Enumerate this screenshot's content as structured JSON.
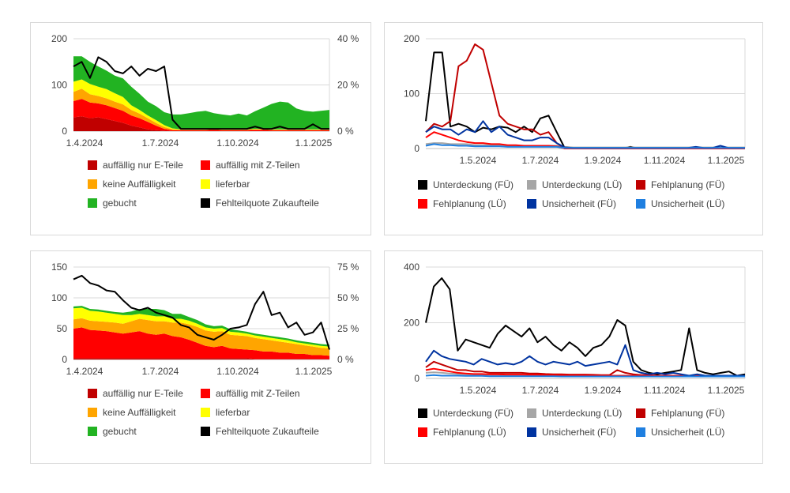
{
  "chart_data": [
    {
      "type": "area",
      "stacked": true,
      "x_ticks": [
        "1.4.2024",
        "1.7.2024",
        "1.10.2024",
        "1.1.2025"
      ],
      "y_ticks": [
        "200",
        "100",
        "0"
      ],
      "y2_ticks": [
        "40 %",
        "20 %",
        "0 %"
      ],
      "ylim": [
        0,
        200
      ],
      "y2lim": [
        0,
        40
      ],
      "grid": true,
      "legend_position": "bottom",
      "series": [
        {
          "name": "auffällig nur E-Teile",
          "color": "#c00000",
          "values": [
            30,
            32,
            28,
            30,
            26,
            22,
            18,
            12,
            8,
            4,
            2,
            1,
            0,
            0,
            0,
            0,
            0,
            0,
            0,
            0,
            0,
            0,
            0,
            0,
            0,
            0,
            0,
            0,
            0,
            0,
            0,
            0
          ]
        },
        {
          "name": "auffällig mit Z-Teilen",
          "color": "#ff0000",
          "values": [
            35,
            38,
            34,
            30,
            30,
            28,
            26,
            22,
            20,
            16,
            10,
            4,
            2,
            2,
            2,
            2,
            2,
            3,
            2,
            2,
            2,
            2,
            3,
            3,
            2,
            2,
            2,
            2,
            2,
            2,
            2,
            2
          ]
        },
        {
          "name": "keine Auffälligkeit",
          "color": "#ffa500",
          "values": [
            20,
            22,
            18,
            16,
            15,
            14,
            14,
            12,
            10,
            8,
            6,
            4,
            2,
            1,
            1,
            1,
            1,
            1,
            1,
            1,
            1,
            1,
            1,
            1,
            1,
            1,
            1,
            1,
            1,
            1,
            1,
            1
          ]
        },
        {
          "name": "lieferbar",
          "color": "#ffff00",
          "values": [
            22,
            20,
            22,
            20,
            20,
            18,
            16,
            10,
            8,
            6,
            6,
            4,
            2,
            1,
            1,
            1,
            1,
            1,
            1,
            1,
            1,
            1,
            1,
            1,
            1,
            1,
            1,
            1,
            1,
            1,
            1,
            1
          ]
        },
        {
          "name": "gebucht",
          "color": "#22b322",
          "values": [
            55,
            50,
            48,
            44,
            40,
            38,
            40,
            40,
            35,
            30,
            30,
            28,
            30,
            32,
            35,
            38,
            40,
            34,
            32,
            30,
            34,
            30,
            38,
            46,
            55,
            60,
            58,
            45,
            40,
            38,
            40,
            42
          ]
        }
      ],
      "line_series": [
        {
          "name": "Fehlteilquote Zukaufteile",
          "color": "#000000",
          "axis": "right",
          "values": [
            28,
            30,
            23,
            32,
            30,
            26,
            25,
            28,
            24,
            27,
            26,
            28,
            5,
            1,
            1,
            1,
            1,
            1,
            1,
            1,
            1,
            1,
            2,
            1,
            1,
            2,
            1,
            1,
            1,
            3,
            1,
            1
          ]
        }
      ]
    },
    {
      "type": "line",
      "x_ticks": [
        "1.5.2024",
        "1.7.2024",
        "1.9.2024",
        "1.11.2024",
        "1.1.2025"
      ],
      "y_ticks": [
        "200",
        "100",
        "0"
      ],
      "ylim": [
        0,
        200
      ],
      "grid": true,
      "legend_position": "bottom",
      "series": [
        {
          "name": "Unterdeckung (FÜ)",
          "color": "#000000",
          "values": [
            50,
            175,
            175,
            40,
            45,
            40,
            30,
            38,
            35,
            40,
            38,
            30,
            40,
            30,
            55,
            60,
            30,
            0,
            0,
            0,
            0,
            0,
            0,
            0,
            0,
            3,
            0,
            0,
            0,
            0,
            0,
            0,
            0,
            0,
            0,
            0,
            0,
            0,
            0,
            0
          ]
        },
        {
          "name": "Unterdeckung (LÜ)",
          "color": "#a6a6a6",
          "values": [
            8,
            10,
            10,
            8,
            8,
            8,
            6,
            6,
            6,
            6,
            5,
            5,
            5,
            5,
            5,
            5,
            5,
            3,
            2,
            2,
            2,
            2,
            2,
            2,
            2,
            2,
            2,
            2,
            2,
            2,
            2,
            2,
            2,
            2,
            2,
            2,
            2,
            2,
            2,
            2
          ]
        },
        {
          "name": "Fehlplanung (FÜ)",
          "color": "#c00000",
          "values": [
            30,
            45,
            40,
            50,
            150,
            160,
            190,
            180,
            120,
            60,
            45,
            40,
            35,
            35,
            25,
            30,
            10,
            0,
            0,
            0,
            0,
            0,
            0,
            0,
            0,
            0,
            0,
            0,
            0,
            0,
            0,
            0,
            0,
            0,
            0,
            0,
            0,
            0,
            0,
            0
          ]
        },
        {
          "name": "Fehlplanung (LÜ)",
          "color": "#ff0000",
          "values": [
            20,
            30,
            25,
            20,
            15,
            12,
            10,
            10,
            8,
            8,
            6,
            6,
            5,
            5,
            5,
            5,
            4,
            0,
            0,
            0,
            0,
            0,
            0,
            0,
            0,
            0,
            0,
            0,
            0,
            0,
            0,
            0,
            0,
            0,
            0,
            0,
            0,
            0,
            0,
            0
          ]
        },
        {
          "name": "Unsicherheit (FÜ)",
          "color": "#0033a0",
          "values": [
            30,
            40,
            35,
            35,
            25,
            35,
            30,
            50,
            30,
            40,
            25,
            20,
            15,
            15,
            20,
            20,
            10,
            2,
            1,
            1,
            1,
            1,
            1,
            1,
            1,
            1,
            1,
            1,
            1,
            1,
            1,
            1,
            1,
            3,
            1,
            1,
            5,
            1,
            1,
            1
          ]
        },
        {
          "name": "Unsicherheit (LÜ)",
          "color": "#1f7fe0",
          "values": [
            5,
            8,
            6,
            6,
            5,
            5,
            4,
            4,
            4,
            4,
            3,
            3,
            3,
            3,
            3,
            3,
            3,
            1,
            1,
            1,
            1,
            1,
            1,
            1,
            1,
            1,
            1,
            1,
            1,
            1,
            1,
            1,
            1,
            1,
            1,
            1,
            1,
            1,
            1,
            1
          ]
        }
      ]
    },
    {
      "type": "area",
      "stacked": true,
      "x_ticks": [
        "1.4.2024",
        "1.7.2024",
        "1.10.2024",
        "1.1.2025"
      ],
      "y_ticks": [
        "150",
        "100",
        "50",
        "0"
      ],
      "y2_ticks": [
        "75 %",
        "50 %",
        "25 %",
        "0 %"
      ],
      "ylim": [
        0,
        150
      ],
      "y2lim": [
        0,
        75
      ],
      "grid": true,
      "legend_position": "bottom",
      "series": [
        {
          "name": "auffällig nur E-Teile",
          "color": "#c00000",
          "values": [
            2,
            2,
            2,
            2,
            2,
            2,
            2,
            2,
            2,
            2,
            2,
            2,
            2,
            2,
            2,
            2,
            2,
            2,
            2,
            2,
            2,
            2,
            1,
            1,
            1,
            1,
            1,
            1,
            1,
            1,
            1,
            1
          ]
        },
        {
          "name": "auffällig mit Z-Teilen",
          "color": "#ff0000",
          "values": [
            48,
            50,
            46,
            45,
            44,
            42,
            40,
            42,
            44,
            40,
            38,
            40,
            36,
            34,
            30,
            25,
            20,
            18,
            20,
            16,
            15,
            14,
            14,
            12,
            12,
            10,
            10,
            8,
            8,
            6,
            6,
            5
          ]
        },
        {
          "name": "keine Auffälligkeit",
          "color": "#ffa500",
          "values": [
            15,
            15,
            15,
            15,
            15,
            16,
            16,
            18,
            20,
            22,
            22,
            20,
            22,
            24,
            25,
            26,
            25,
            25,
            24,
            22,
            22,
            22,
            20,
            20,
            18,
            18,
            16,
            16,
            14,
            14,
            12,
            12
          ]
        },
        {
          "name": "lieferbar",
          "color": "#ffff00",
          "values": [
            18,
            17,
            16,
            16,
            15,
            14,
            14,
            10,
            8,
            8,
            8,
            8,
            6,
            6,
            6,
            5,
            5,
            5,
            5,
            5,
            5,
            4,
            4,
            4,
            4,
            4,
            4,
            3,
            3,
            3,
            3,
            3
          ]
        },
        {
          "name": "gebucht",
          "color": "#22b322",
          "values": [
            3,
            3,
            3,
            3,
            3,
            3,
            4,
            6,
            8,
            10,
            12,
            10,
            8,
            8,
            6,
            6,
            5,
            4,
            4,
            4,
            3,
            3,
            3,
            3,
            3,
            3,
            3,
            3,
            3,
            3,
            3,
            3
          ]
        }
      ],
      "line_series": [
        {
          "name": "Fehlteilquote Zukaufteile",
          "color": "#000000",
          "axis": "right",
          "values": [
            65,
            68,
            62,
            60,
            56,
            55,
            48,
            42,
            40,
            42,
            38,
            36,
            34,
            28,
            26,
            20,
            18,
            16,
            20,
            25,
            26,
            28,
            45,
            55,
            36,
            38,
            26,
            30,
            20,
            22,
            30,
            8
          ]
        }
      ]
    },
    {
      "type": "line",
      "x_ticks": [
        "1.5.2024",
        "1.7.2024",
        "1.9.2024",
        "1.11.2024",
        "1.1.2025"
      ],
      "y_ticks": [
        "400",
        "200",
        "0"
      ],
      "ylim": [
        0,
        400
      ],
      "grid": true,
      "legend_position": "bottom",
      "series": [
        {
          "name": "Unterdeckung (FÜ)",
          "color": "#000000",
          "values": [
            200,
            330,
            360,
            320,
            100,
            140,
            130,
            120,
            110,
            160,
            190,
            170,
            150,
            180,
            130,
            150,
            120,
            100,
            130,
            110,
            80,
            110,
            120,
            150,
            210,
            190,
            60,
            30,
            20,
            15,
            20,
            25,
            30,
            180,
            30,
            20,
            15,
            20,
            25,
            10,
            15
          ]
        },
        {
          "name": "Unterdeckung (LÜ)",
          "color": "#a6a6a6",
          "values": [
            20,
            22,
            20,
            18,
            16,
            15,
            14,
            14,
            13,
            12,
            12,
            12,
            12,
            12,
            11,
            11,
            10,
            10,
            10,
            10,
            10,
            10,
            10,
            10,
            10,
            10,
            10,
            10,
            10,
            10,
            10,
            10,
            10,
            10,
            10,
            10,
            10,
            10,
            10,
            10,
            10
          ]
        },
        {
          "name": "Fehlplanung (FÜ)",
          "color": "#c00000",
          "values": [
            40,
            60,
            50,
            40,
            30,
            30,
            25,
            25,
            20,
            20,
            20,
            20,
            20,
            18,
            18,
            16,
            15,
            15,
            14,
            14,
            14,
            13,
            12,
            12,
            30,
            20,
            15,
            12,
            12,
            10,
            10,
            10,
            10,
            10,
            10,
            10,
            10,
            10,
            10,
            10,
            10
          ]
        },
        {
          "name": "Fehlplanung (LÜ)",
          "color": "#ff0000",
          "values": [
            30,
            35,
            30,
            25,
            20,
            18,
            16,
            16,
            15,
            15,
            14,
            14,
            14,
            13,
            13,
            12,
            12,
            12,
            11,
            11,
            11,
            10,
            10,
            10,
            10,
            10,
            10,
            10,
            10,
            10,
            10,
            10,
            10,
            10,
            10,
            10,
            10,
            10,
            10,
            10,
            10
          ]
        },
        {
          "name": "Unsicherheit (FÜ)",
          "color": "#0033a0",
          "values": [
            60,
            100,
            80,
            70,
            65,
            60,
            50,
            70,
            60,
            50,
            55,
            50,
            60,
            80,
            60,
            50,
            60,
            55,
            50,
            60,
            45,
            50,
            55,
            60,
            50,
            120,
            30,
            20,
            15,
            20,
            15,
            20,
            15,
            10,
            15,
            10,
            10,
            10,
            10,
            10,
            10
          ]
        },
        {
          "name": "Unsicherheit (LÜ)",
          "color": "#1f7fe0",
          "values": [
            10,
            12,
            10,
            10,
            10,
            9,
            9,
            9,
            8,
            8,
            8,
            8,
            8,
            8,
            8,
            8,
            8,
            7,
            7,
            7,
            7,
            7,
            7,
            7,
            7,
            7,
            7,
            7,
            7,
            7,
            7,
            7,
            7,
            7,
            7,
            7,
            7,
            7,
            7,
            7,
            7
          ]
        }
      ]
    }
  ]
}
